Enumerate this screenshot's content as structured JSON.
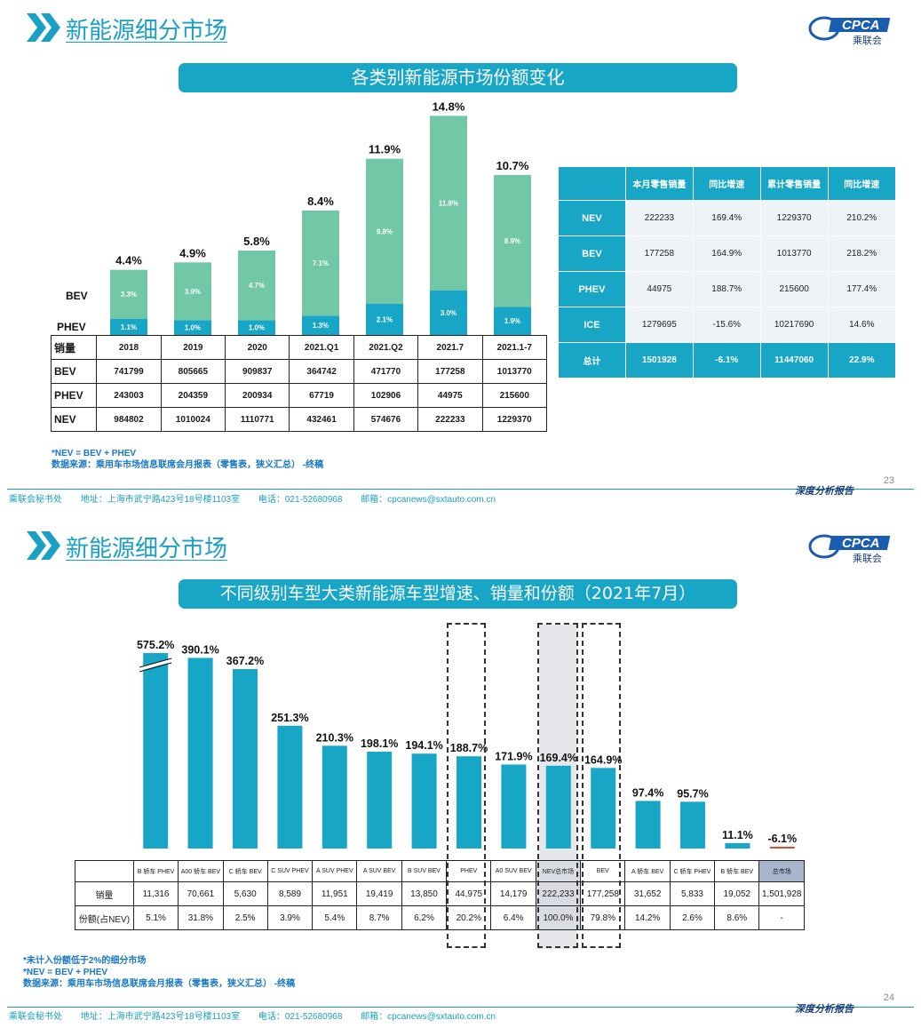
{
  "slide1": {
    "header_title": "新能源细分市场",
    "logo": {
      "text": "CPCA",
      "sub": "乘联会",
      "icon": "cpca-logo-icon"
    },
    "banner": "各类别新能源市场份额变化",
    "chart_data": {
      "type": "bar",
      "stacked": true,
      "categories": [
        "2018",
        "2019",
        "2020",
        "2021.Q1",
        "2021.Q2",
        "2021.7",
        "2021.1-7"
      ],
      "series": [
        {
          "name": "PHEV",
          "values": [
            1.1,
            1.0,
            1.0,
            1.3,
            2.1,
            3.0,
            1.9
          ],
          "labels": [
            "1.1%",
            "1.0%",
            "1.0%",
            "1.3%",
            "2.1%",
            "3.0%",
            "1.9%"
          ],
          "color": "#17a6c6"
        },
        {
          "name": "BEV",
          "values": [
            3.3,
            3.9,
            4.7,
            7.1,
            9.8,
            11.8,
            8.9
          ],
          "labels": [
            "3.3%",
            "3.9%",
            "4.7%",
            "7.1%",
            "9.8%",
            "11.8%",
            "8.9%"
          ],
          "color": "#72c7a6"
        }
      ],
      "totals": [
        4.4,
        4.9,
        5.8,
        8.4,
        11.9,
        14.8,
        10.7
      ],
      "total_labels": [
        "4.4%",
        "4.9%",
        "5.8%",
        "8.4%",
        "11.9%",
        "14.8%",
        "10.7%"
      ],
      "ylim": [
        0,
        15
      ],
      "legend": "left"
    },
    "table": {
      "corner": "销量",
      "columns": [
        "2018",
        "2019",
        "2020",
        "2021.Q1",
        "2021.Q2",
        "2021.7",
        "2021.1-7"
      ],
      "rows": [
        {
          "label": "BEV",
          "values": [
            "741799",
            "805665",
            "909837",
            "364742",
            "471770",
            "177258",
            "1013770"
          ]
        },
        {
          "label": "PHEV",
          "values": [
            "243003",
            "204359",
            "200934",
            "67719",
            "102906",
            "44975",
            "215600"
          ]
        },
        {
          "label": "NEV",
          "values": [
            "984802",
            "1010024",
            "1110771",
            "432461",
            "574676",
            "222233",
            "1229370"
          ]
        }
      ]
    },
    "right_table": {
      "headers": [
        "",
        "本月零售销量",
        "同比增速",
        "累计零售销量",
        "同比增速"
      ],
      "rows": [
        {
          "label": "NEV",
          "values": [
            "222233",
            "169.4%",
            "1229370",
            "210.2%"
          ]
        },
        {
          "label": "BEV",
          "values": [
            "177258",
            "164.9%",
            "1013770",
            "218.2%"
          ]
        },
        {
          "label": "PHEV",
          "values": [
            "44975",
            "188.7%",
            "215600",
            "177.4%"
          ]
        },
        {
          "label": "ICE",
          "values": [
            "1279695",
            "-15.6%",
            "10217690",
            "14.6%"
          ]
        }
      ],
      "total": {
        "label": "总计",
        "values": [
          "1501928",
          "-6.1%",
          "11447060",
          "22.9%"
        ]
      }
    },
    "footnotes": [
      "*NEV = BEV + PHEV",
      "数据来源：乘用车市场信息联席会月报表（零售表，狭义汇总） -终稿"
    ],
    "page_number": "23"
  },
  "slide2": {
    "header_title": "新能源细分市场",
    "logo": {
      "text": "CPCA",
      "sub": "乘联会",
      "icon": "cpca-logo-icon"
    },
    "banner": "不同级别车型大类新能源车型增速、销量和份额（2021年7月）",
    "chart_data": {
      "type": "bar",
      "categories": [
        "B 轿车 PHEV",
        "A00 轿车 BEV",
        "C 轿车 BEV",
        "C SUV PHEV",
        "A SUV PHEV",
        "A SUV BEV",
        "B SUV BEV",
        "PHEV",
        "A0 SUV BEV",
        "NEV总市场",
        "BEV",
        "A 轿车 BEV",
        "C 轿车 PHEV",
        "B 轿车 BEV",
        "总市场"
      ],
      "values": [
        575.2,
        390.1,
        367.2,
        251.3,
        210.3,
        198.1,
        194.1,
        188.7,
        171.9,
        169.4,
        164.9,
        97.4,
        95.7,
        11.1,
        -6.1
      ],
      "labels": [
        "575.2%",
        "390.1%",
        "367.2%",
        "251.3%",
        "210.3%",
        "198.1%",
        "194.1%",
        "188.7%",
        "171.9%",
        "169.4%",
        "164.9%",
        "97.4%",
        "95.7%",
        "11.1%",
        "-6.1%"
      ],
      "axis_break": true,
      "color": "#17a6c6",
      "negative_color": "#e04b2a",
      "highlight": [
        "PHEV",
        "NEV总市场",
        "BEV"
      ]
    },
    "table": {
      "rows": [
        {
          "label": "销量",
          "values": [
            "11,316",
            "70,661",
            "5,630",
            "8,589",
            "11,951",
            "19,419",
            "13,850",
            "44,975",
            "14,179",
            "222,233",
            "177,258",
            "31,652",
            "5,833",
            "19,052",
            "1,501,928"
          ]
        },
        {
          "label": "份额(占NEV)",
          "values": [
            "5.1%",
            "31.8%",
            "2.5%",
            "3.9%",
            "5.4%",
            "8.7%",
            "6.2%",
            "20.2%",
            "6.4%",
            "100.0%",
            "79.8%",
            "14.2%",
            "2.6%",
            "8.6%",
            "-"
          ]
        }
      ]
    },
    "footnotes": [
      "*未计入份额低于2%的细分市场",
      "*NEV = BEV + PHEV",
      "数据来源：乘用车市场信息联席会月报表（零售表，狭义汇总） -终稿"
    ],
    "page_number": "24"
  },
  "footer": {
    "org": "乘联会秘书处",
    "address": "地址：上海市武宁路423号18号楼1103室",
    "phone": "电话：021-52680968",
    "email": "邮箱：cpcanews@sxtauto.com.cn",
    "brand": "深度分析报告"
  },
  "watermark": "CPCA乘联会",
  "colors": {
    "accent": "#17a6c6",
    "bev": "#72c7a6",
    "phev": "#17a6c6",
    "footnote": "#1777c2"
  }
}
